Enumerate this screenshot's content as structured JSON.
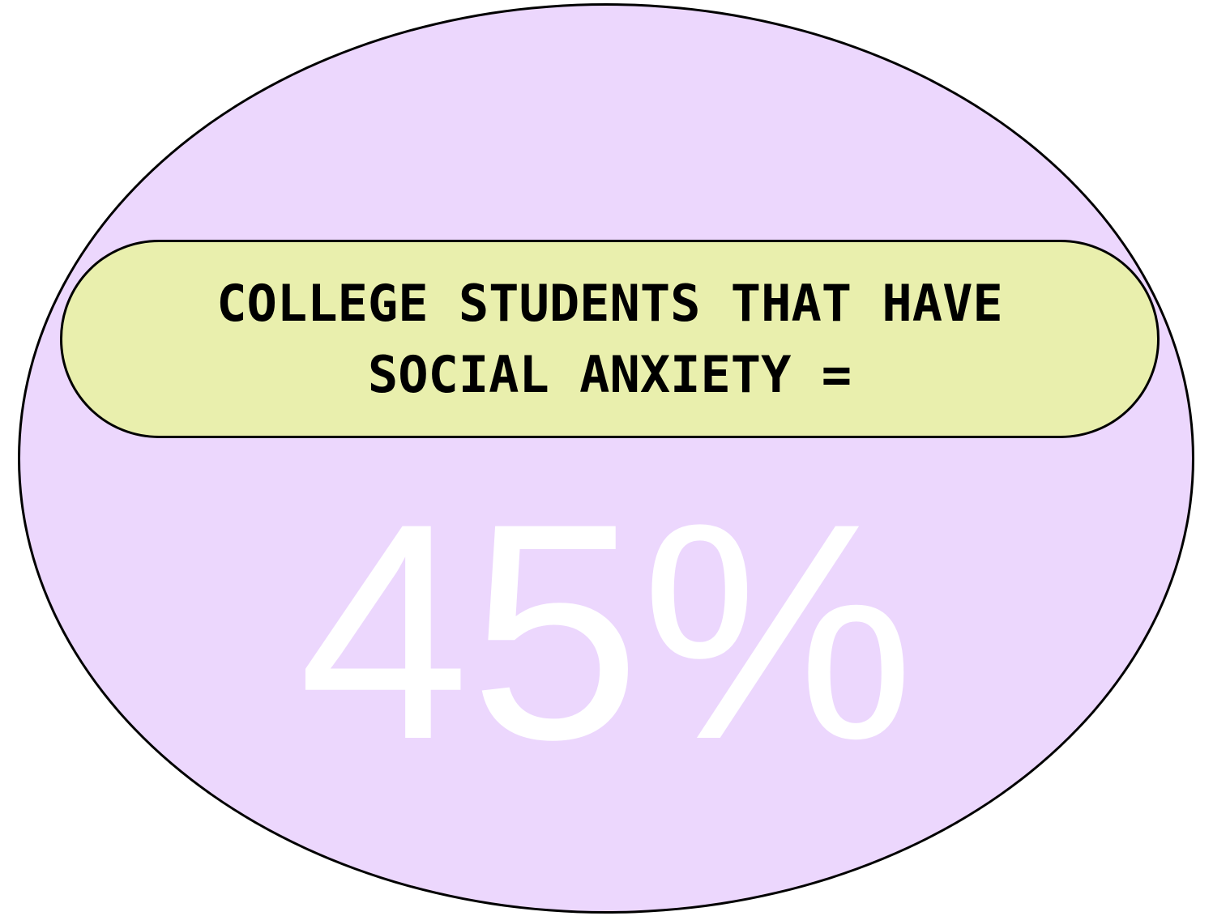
{
  "headline": "COLLEGE STUDENTS THAT HAVE SOCIAL ANXIETY =",
  "statistic": {
    "value_text": "45%",
    "percent": 45
  },
  "colors": {
    "ellipse_fill": "#ecd7fd",
    "pill_fill": "#e9efad",
    "outline": "#000000",
    "headline_text": "#000000",
    "statistic_text": "#ffffff"
  }
}
